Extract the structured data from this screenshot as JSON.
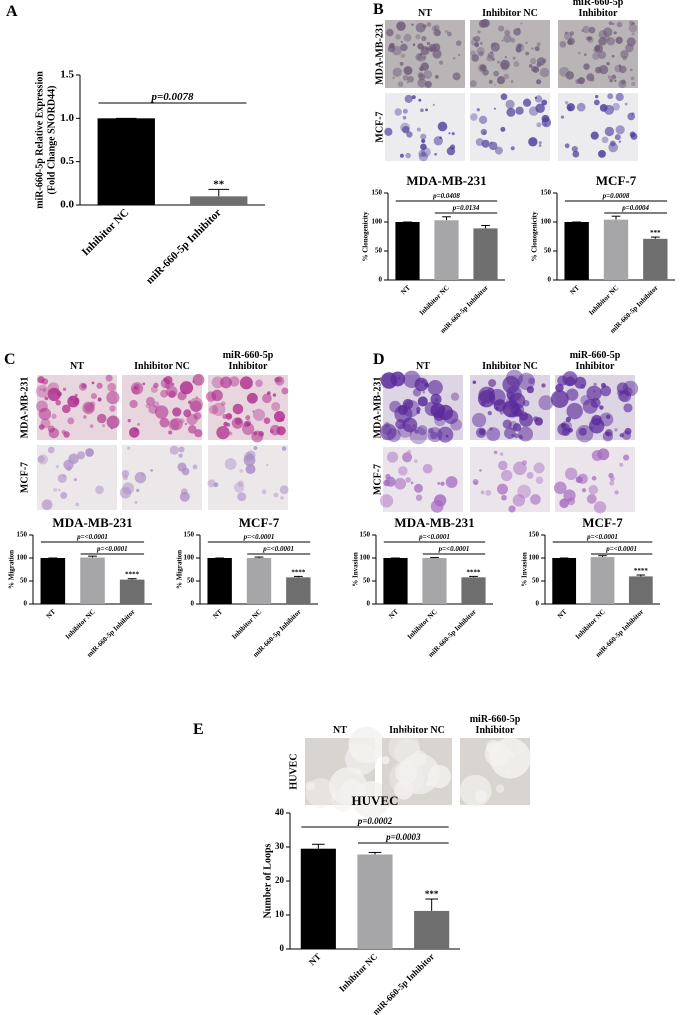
{
  "chart_data": [
    {
      "type": "bar",
      "categories": [
        "Inhibitor NC",
        "miR-660-5p Inhibitor"
      ],
      "values": [
        1.0,
        0.1
      ],
      "errors": [
        0,
        0.08
      ],
      "colors": [
        "#000000",
        "#6e6e6e"
      ],
      "ylim": [
        0,
        1.5
      ],
      "yticks": [
        {
          "value": 0,
          "label": "0.0"
        },
        {
          "value": 0.5,
          "label": "0.5"
        },
        {
          "value": 1,
          "label": "1.0"
        },
        {
          "value": 1.5,
          "label": "1.5"
        }
      ],
      "ylabel": [
        "miR-660-5p Relative Expression",
        "(Fold Change SNORD44)"
      ],
      "annotations": [
        "p=0.0078"
      ],
      "stars": "**"
    },
    {
      "type": "bar",
      "title": "MDA-MB-231",
      "categories": [
        "NT",
        "Inhibitor NC",
        "miR-660-5p Inhibitor"
      ],
      "values": [
        100,
        103,
        89
      ],
      "errors": [
        0,
        6,
        5
      ],
      "colors": [
        "#000000",
        "#a6a6a8",
        "#6e6e6e"
      ],
      "ylim": [
        0,
        150
      ],
      "yticks": [
        0,
        50,
        100,
        150
      ],
      "ylabel": [
        "% Clonogenicity"
      ],
      "annotations": [
        "p=0.0408",
        "p=0.0134"
      ]
    },
    {
      "type": "bar",
      "title": "MCF-7",
      "categories": [
        "NT",
        "Inhibitor NC",
        "miR-660-5p Inhibitor"
      ],
      "values": [
        100,
        104,
        71
      ],
      "errors": [
        0,
        6,
        3
      ],
      "colors": [
        "#000000",
        "#a6a6a8",
        "#6e6e6e"
      ],
      "ylim": [
        0,
        150
      ],
      "yticks": [
        0,
        50,
        100,
        150
      ],
      "ylabel": [
        "% Clonogenicity"
      ],
      "annotations": [
        "p=0.0008",
        "p=0.0004"
      ],
      "stars": "***"
    },
    {
      "type": "bar",
      "title": "MDA-MB-231",
      "categories": [
        "NT",
        "Inhibitor NC",
        "miR-660-5p Inhibitor"
      ],
      "values": [
        100,
        101,
        53
      ],
      "errors": [
        0,
        3,
        2
      ],
      "colors": [
        "#000000",
        "#a6a6a8",
        "#6e6e6e"
      ],
      "ylim": [
        0,
        150
      ],
      "yticks": [
        0,
        50,
        100,
        150
      ],
      "ylabel": [
        "% Migration"
      ],
      "annotations": [
        "p=<0.0001",
        "p=<0.0001"
      ],
      "stars": "****"
    },
    {
      "type": "bar",
      "title": "MCF-7",
      "categories": [
        "NT",
        "Inhibitor NC",
        "miR-660-5p Inhibitor"
      ],
      "values": [
        100,
        100,
        58
      ],
      "errors": [
        0,
        2,
        2
      ],
      "colors": [
        "#000000",
        "#a6a6a8",
        "#6e6e6e"
      ],
      "ylim": [
        0,
        150
      ],
      "yticks": [
        0,
        50,
        100,
        150
      ],
      "ylabel": [
        "% Migration"
      ],
      "annotations": [
        "p=<0.0001",
        "p=<0.0001"
      ],
      "stars": "****"
    },
    {
      "type": "bar",
      "title": "MDA-MB-231",
      "categories": [
        "NT",
        "Inhibitor NC",
        "miR-660-5p Inhibitor"
      ],
      "values": [
        100,
        100,
        58
      ],
      "errors": [
        0,
        1,
        2
      ],
      "colors": [
        "#000000",
        "#a6a6a8",
        "#6e6e6e"
      ],
      "ylim": [
        0,
        150
      ],
      "yticks": [
        0,
        50,
        100,
        150
      ],
      "ylabel": [
        "% Invasion"
      ],
      "annotations": [
        "p=<0.0001",
        "p=<0.0001"
      ],
      "stars": "****"
    },
    {
      "type": "bar",
      "title": "MCF-7",
      "categories": [
        "NT",
        "Inhibitor NC",
        "miR-660-5p Inhibitor"
      ],
      "values": [
        100,
        102,
        60
      ],
      "errors": [
        0,
        3,
        3
      ],
      "colors": [
        "#000000",
        "#a6a6a8",
        "#6e6e6e"
      ],
      "ylim": [
        0,
        150
      ],
      "yticks": [
        0,
        50,
        100,
        150
      ],
      "ylabel": [
        "% Invasion"
      ],
      "annotations": [
        "p=<0.0001",
        "p=<0.0001"
      ],
      "stars": "****"
    },
    {
      "type": "bar",
      "title": "HUVEC",
      "categories": [
        "NT",
        "Inhibitor NC",
        "miR-660-5p Inhibitor"
      ],
      "values": [
        29.5,
        27.8,
        11.2
      ],
      "errors": [
        1.3,
        0.6,
        3.5
      ],
      "colors": [
        "#000000",
        "#a6a6a8",
        "#6e6e6e"
      ],
      "ylim": [
        0,
        40
      ],
      "yticks": [
        0,
        10,
        20,
        30,
        40
      ],
      "ylabel": [
        "Number of Loops"
      ],
      "annotations": [
        "p=0.0002",
        "p=0.0003"
      ],
      "stars": "***"
    }
  ],
  "panels": [
    {
      "letter": "A"
    },
    {
      "letter": "B",
      "columns": [
        [
          "NT"
        ],
        [
          "Inhibitor NC"
        ],
        [
          "miR-660-5p",
          "Inhibitor"
        ]
      ],
      "rows": [
        "MDA-MB-231",
        "MCF-7"
      ]
    },
    {
      "letter": "C",
      "columns": [
        [
          "NT"
        ],
        [
          "Inhibitor NC"
        ],
        [
          "miR-660-5p",
          "Inhibitor"
        ]
      ],
      "rows": [
        "MDA-MB-231",
        "MCF-7"
      ]
    },
    {
      "letter": "D",
      "columns": [
        [
          "NT"
        ],
        [
          "Inhibitor NC"
        ],
        [
          "miR-660-5p",
          "Inhibitor"
        ]
      ],
      "rows": [
        "MDA-MB-231",
        "MCF-7"
      ]
    },
    {
      "letter": "E",
      "columns": [
        [
          "NT"
        ],
        [
          "Inhibitor NC"
        ],
        [
          "miR-660-5p",
          "Inhibitor"
        ]
      ],
      "rows": [
        "HUVEC"
      ]
    }
  ]
}
